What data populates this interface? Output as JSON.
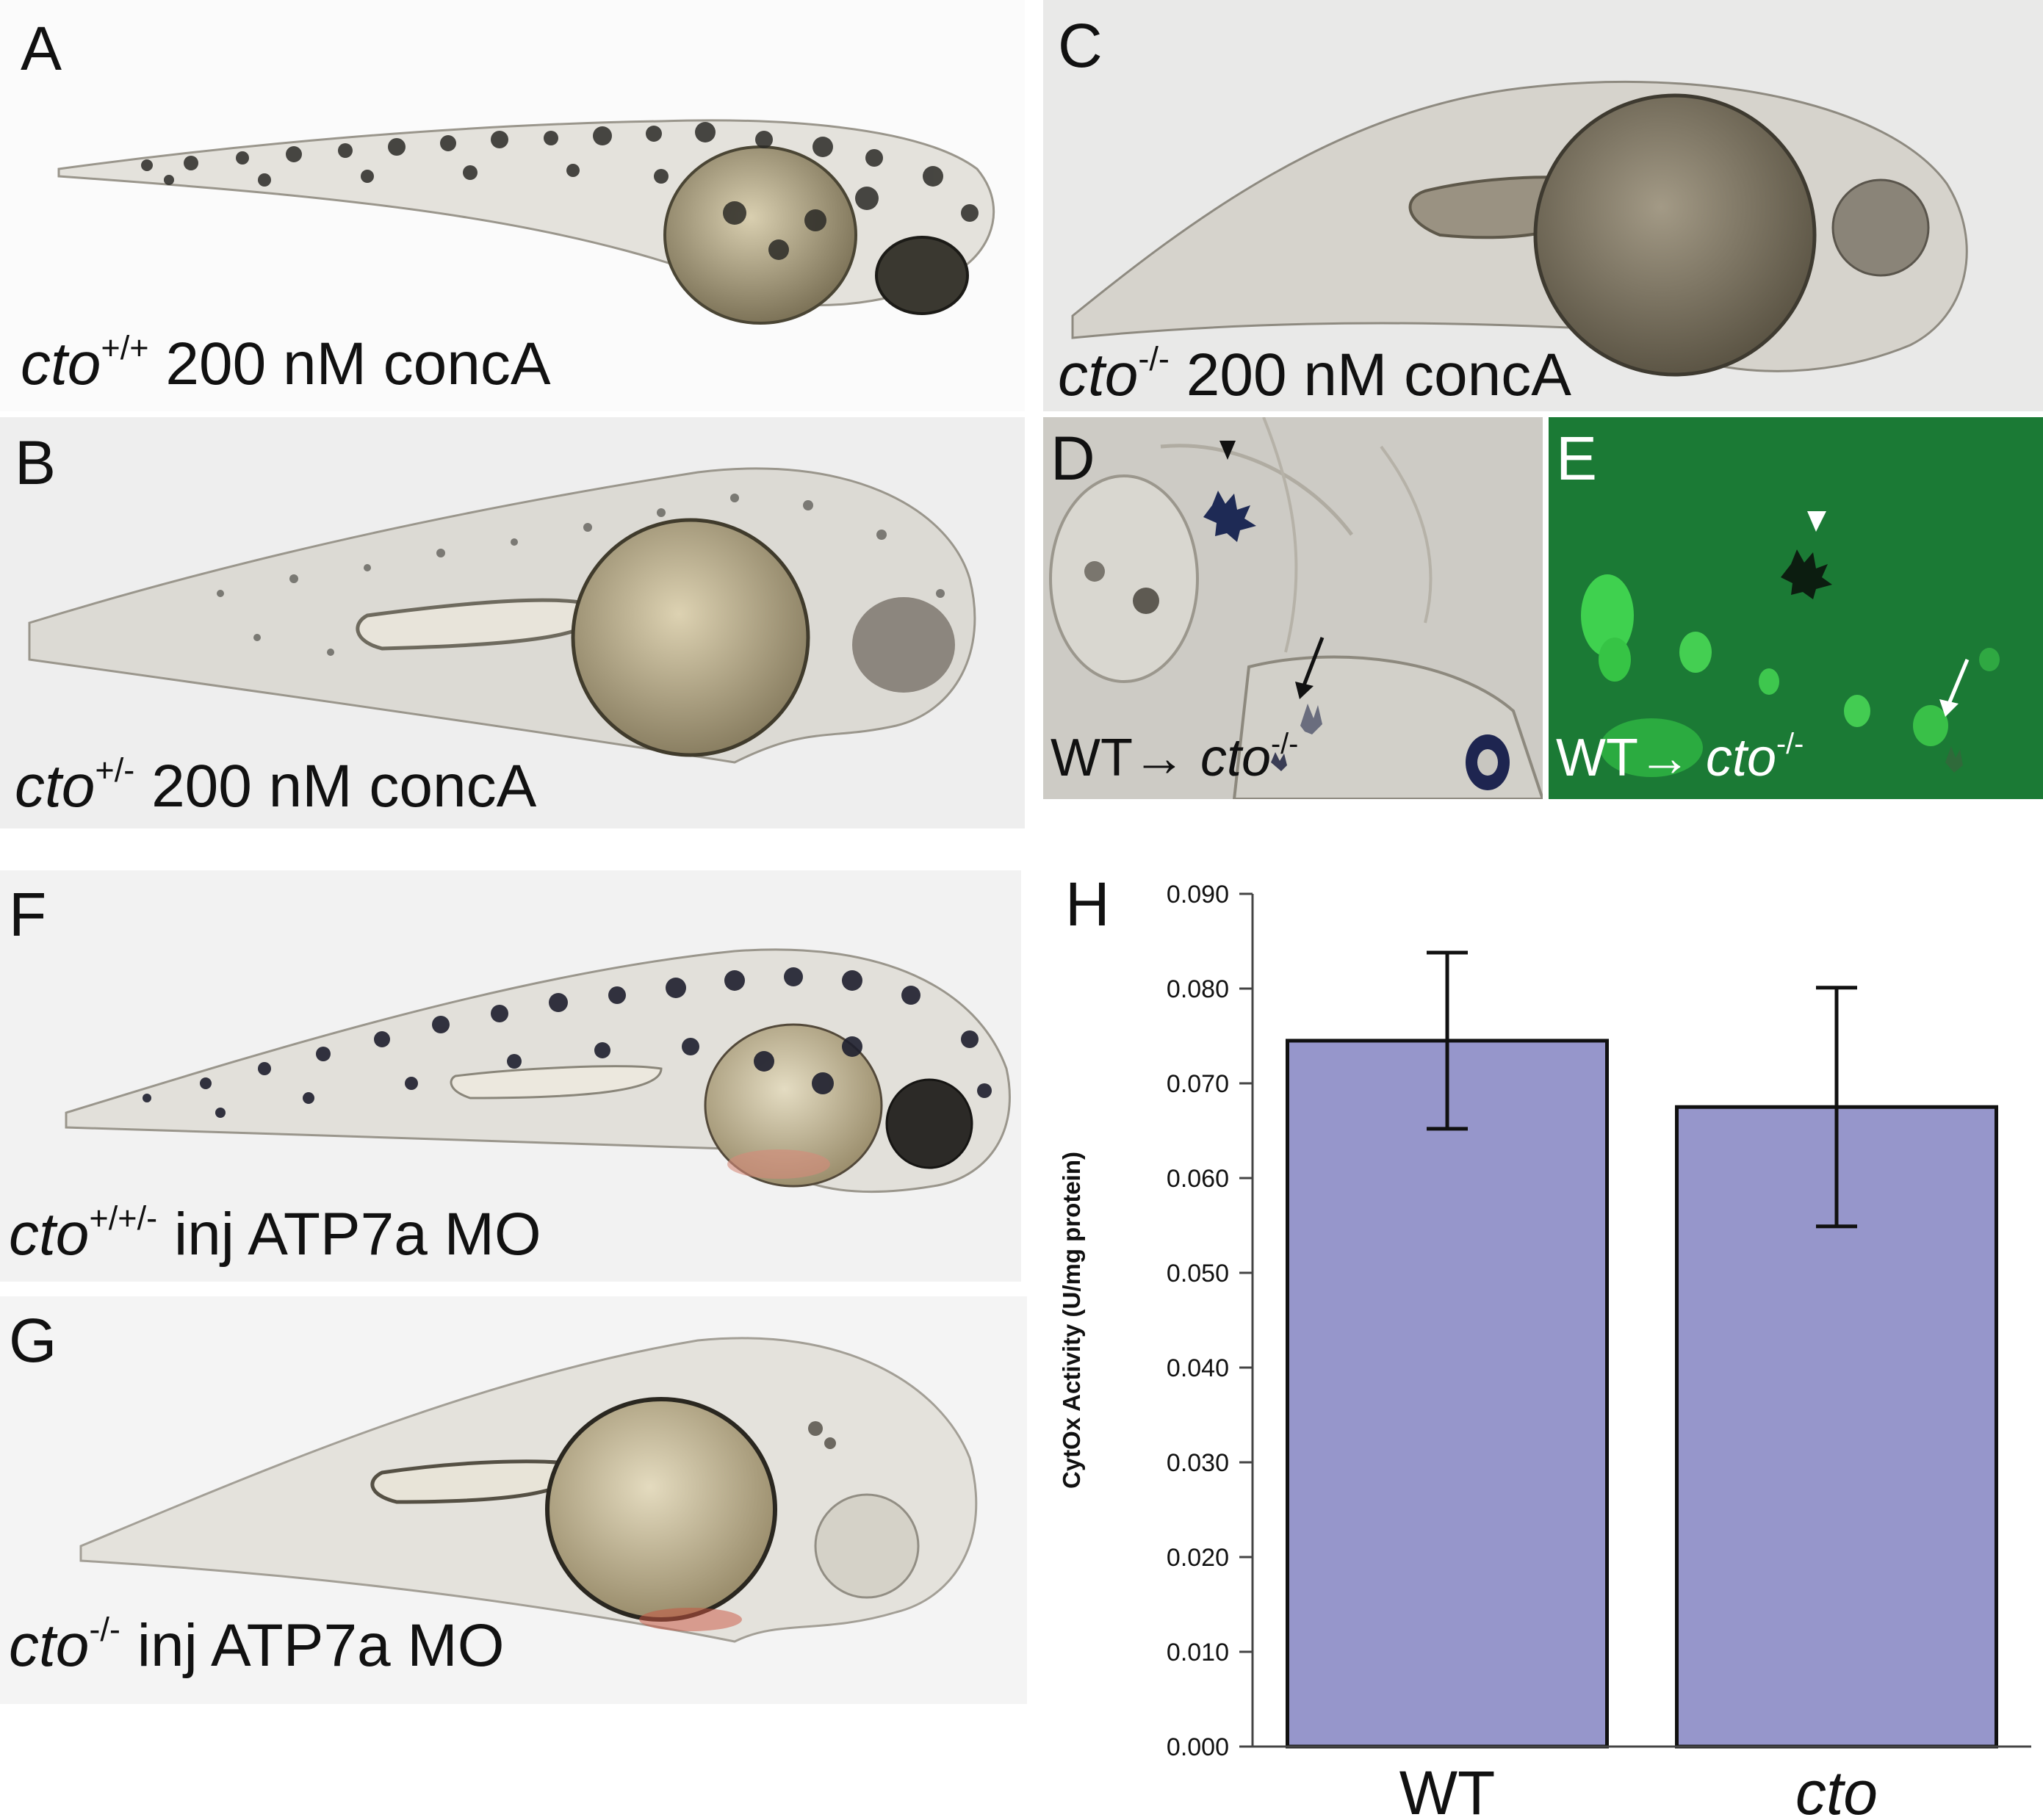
{
  "panels": {
    "A": {
      "letter": "A",
      "genotype": "cto",
      "superscript": "+/+",
      "treatment": "200 nM concA"
    },
    "B": {
      "letter": "B",
      "genotype": "cto",
      "superscript": "+/-",
      "treatment": "200 nM concA"
    },
    "C": {
      "letter": "C",
      "genotype": "cto",
      "superscript": "-/-",
      "treatment": "200 nM concA"
    },
    "D": {
      "letter": "D",
      "donor": "WT",
      "arrow": "→",
      "genotype": "cto",
      "superscript": "-/-"
    },
    "E": {
      "letter": "E",
      "donor": "WT",
      "arrow": "→",
      "genotype": "cto",
      "superscript": "-/-"
    },
    "F": {
      "letter": "F",
      "genotype": "cto",
      "superscript": "+/+/-",
      "treatment": "inj ATP7a MO"
    },
    "G": {
      "letter": "G",
      "genotype": "cto",
      "superscript": "-/-",
      "treatment": "inj ATP7a MO"
    }
  },
  "chart_data": {
    "type": "bar",
    "panel_letter": "H",
    "categories": [
      "WT",
      "cto"
    ],
    "category_italic": [
      false,
      true
    ],
    "values": [
      0.0745,
      0.0675
    ],
    "error": [
      0.0093,
      0.0126
    ],
    "ylabel": "CytOx Activity (U/mg protein)",
    "ylim": [
      0,
      0.09
    ],
    "ytick_step": 0.01,
    "ytick_labels": [
      "0.000",
      "0.010",
      "0.020",
      "0.030",
      "0.040",
      "0.050",
      "0.060",
      "0.070",
      "0.080",
      "0.090"
    ],
    "bar_color": "#9696cb",
    "grid": false,
    "legend": "none"
  }
}
